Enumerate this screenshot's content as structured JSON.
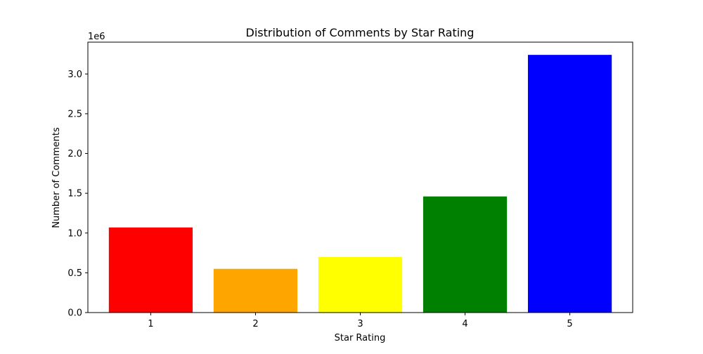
{
  "chart_data": {
    "type": "bar",
    "title": "Distribution of Comments by Star Rating",
    "xlabel": "Star Rating",
    "ylabel": "Number of Comments",
    "y_offset_label": "1e6",
    "categories": [
      "1",
      "2",
      "3",
      "4",
      "5"
    ],
    "values": [
      1070000,
      550000,
      700000,
      1460000,
      3240000
    ],
    "colors": [
      "#ff0000",
      "#ffa500",
      "#ffff00",
      "#008000",
      "#0000ff"
    ],
    "ylim": [
      0,
      3400000
    ],
    "y_ticks": [
      0,
      500000,
      1000000,
      1500000,
      2000000,
      2500000,
      3000000
    ],
    "y_tick_labels": [
      "0.0",
      "0.5",
      "1.0",
      "1.5",
      "2.0",
      "2.5",
      "3.0"
    ],
    "grid": false,
    "legend": "none"
  }
}
